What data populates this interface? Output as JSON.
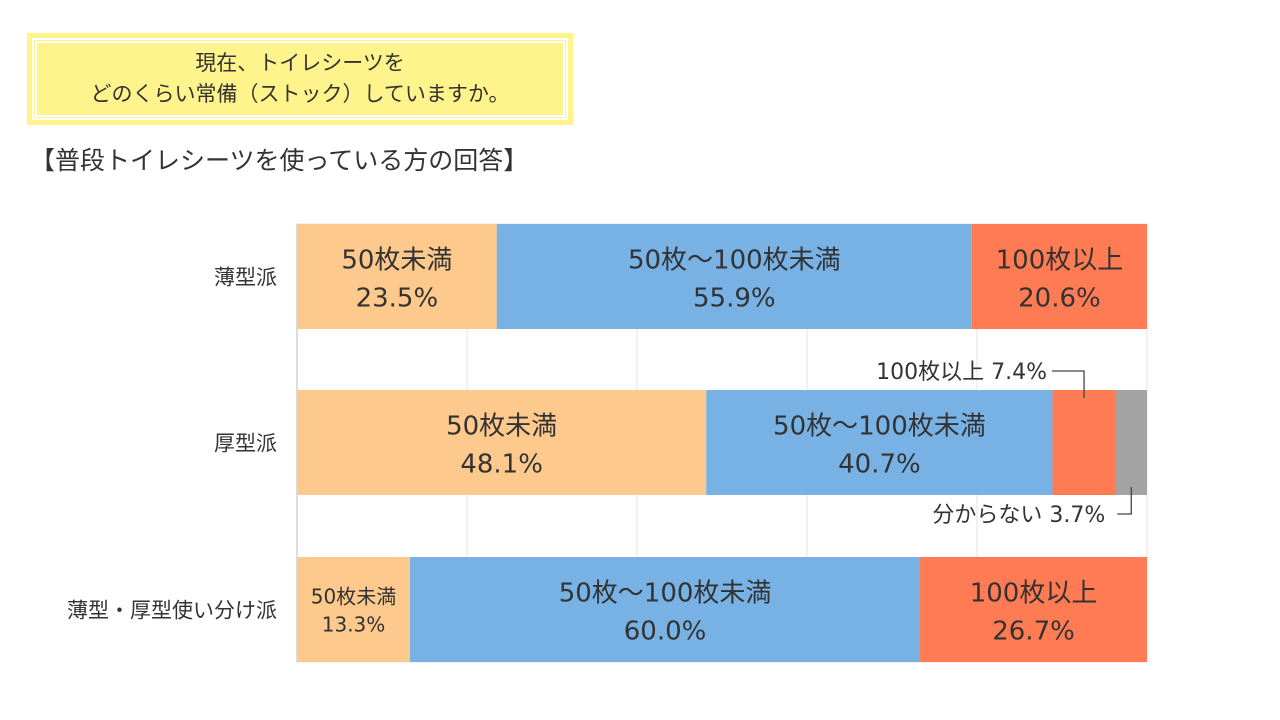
{
  "question": {
    "line1": "現在、トイレシーツを",
    "line2": "どのくらい常備（ストック）していますか。"
  },
  "subtitle": "【普段トイレシーツを使っている方の回答】",
  "colors": {
    "under50": "#fdc98c",
    "from50to100": "#78b1e4",
    "over100": "#ff7b54",
    "unknown": "#a3a3a3",
    "grid": "#e4e4e4",
    "text": "#333333"
  },
  "chart_data": {
    "type": "bar",
    "orientation": "horizontal",
    "stacked": true,
    "normalized": true,
    "xlim": [
      0,
      100
    ],
    "grid": true,
    "categories": [
      "薄型派",
      "厚型派",
      "薄型・厚型使い分け派"
    ],
    "series": [
      {
        "name": "50枚未満",
        "values": [
          23.5,
          48.1,
          13.3
        ],
        "labels": [
          "23.5%",
          "48.1%",
          "13.3%"
        ]
      },
      {
        "name": "50枚～100枚未満",
        "values": [
          55.9,
          40.7,
          60.0
        ],
        "labels": [
          "55.9%",
          "40.7%",
          "60.0%"
        ]
      },
      {
        "name": "100枚以上",
        "values": [
          20.6,
          7.4,
          26.7
        ],
        "labels": [
          "20.6%",
          "7.4%",
          "26.7%"
        ]
      },
      {
        "name": "分からない",
        "values": [
          0,
          3.7,
          0
        ],
        "labels": [
          "",
          "3.7%",
          ""
        ]
      }
    ],
    "callouts": [
      {
        "text": "100枚以上 7.4%",
        "category": 1,
        "series": 2
      },
      {
        "text": "分からない 3.7%",
        "category": 1,
        "series": 3
      }
    ]
  }
}
